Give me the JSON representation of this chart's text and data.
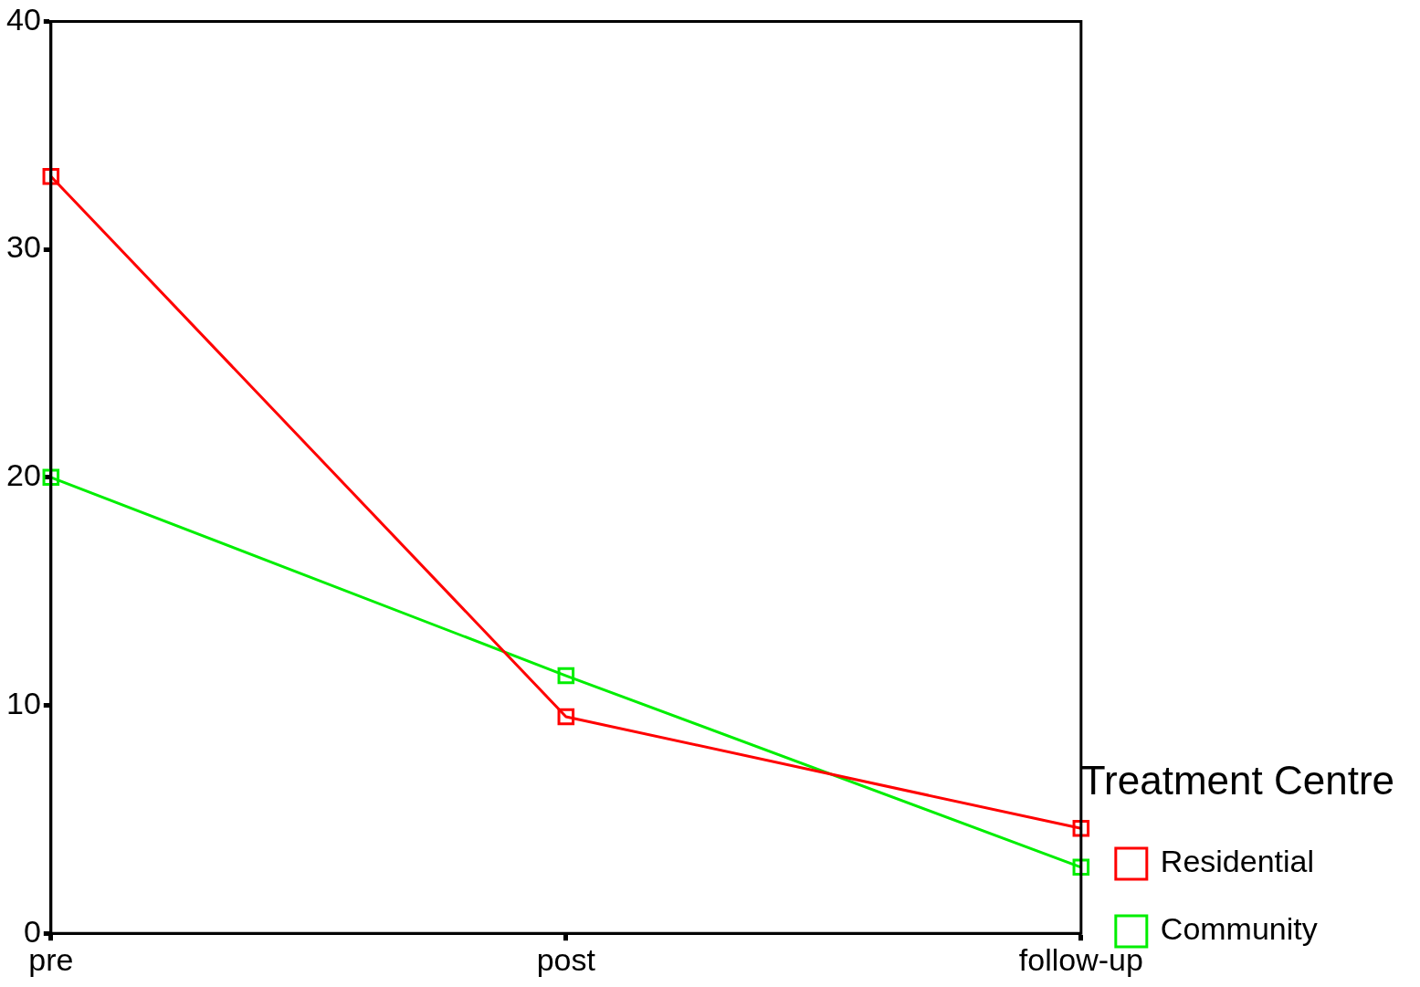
{
  "chart_data": {
    "type": "line",
    "categories": [
      "pre",
      "post",
      "follow-up"
    ],
    "series": [
      {
        "name": "Residential",
        "color": "#ff0000",
        "values": [
          33.2,
          9.5,
          4.6
        ]
      },
      {
        "name": "Community",
        "color": "#00ee00",
        "values": [
          20.0,
          11.3,
          2.9
        ]
      }
    ],
    "ylim": [
      0,
      40
    ],
    "yticks": [
      0,
      10,
      20,
      30,
      40
    ],
    "grid": false,
    "legend": "right",
    "legend_title": "Treatment Centre",
    "marker": "square",
    "line_style": "solid"
  }
}
